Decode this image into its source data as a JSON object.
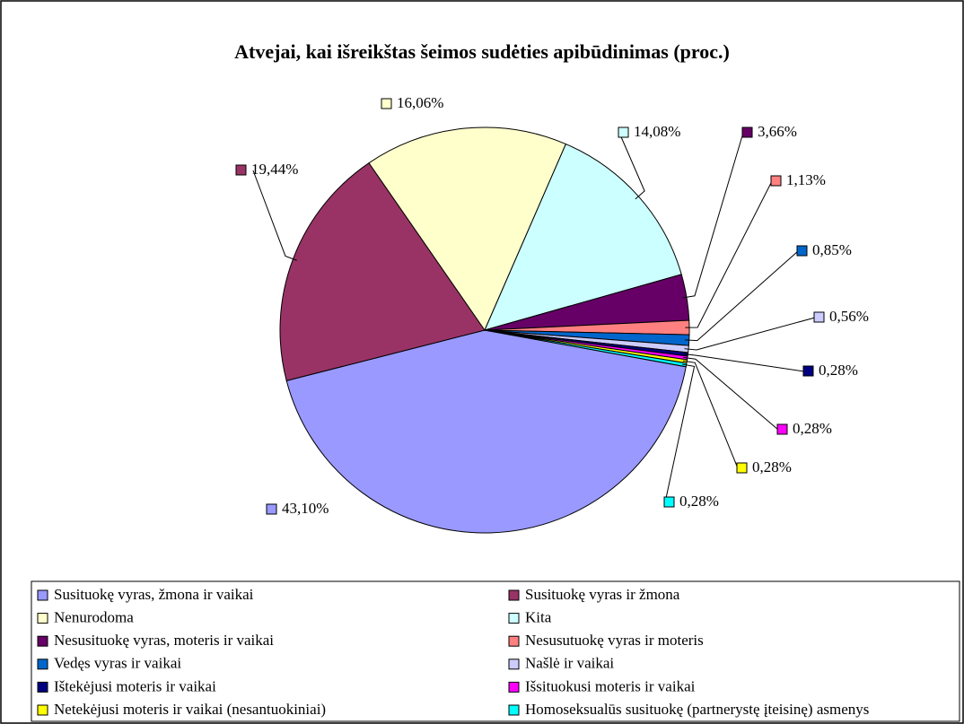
{
  "chart_data": {
    "type": "pie",
    "title": "Atvejai, kai išreikštas šeimos sudėties apibūdinimas (proc.)",
    "categories": [
      "Susituokę vyras, žmona ir vaikai",
      "Susituokę vyras ir žmona",
      "Nenurodoma",
      "Kita",
      "Nesusituokę vyras, moteris ir vaikai",
      "Nesusutuokę vyras ir moteris",
      "Vedęs vyras ir vaikai",
      "Našlė ir vaikai",
      "Ištekėjusi moteris ir vaikai",
      "Išsituokusi moteris ir vaikai",
      "Netekėjusi moteris ir vaikai (nesantuokiniai)",
      "Homoseksualūs susituokę (partnerystę įteisinę) asmenys"
    ],
    "values": [
      43.1,
      19.44,
      16.06,
      14.08,
      3.66,
      1.13,
      0.85,
      0.56,
      0.28,
      0.28,
      0.28,
      0.28
    ],
    "value_labels": [
      "43,10%",
      "19,44%",
      "16,06%",
      "14,08%",
      "3,66%",
      "1,13%",
      "0,85%",
      "0,56%",
      "0,28%",
      "0,28%",
      "0,28%",
      "0,28%"
    ],
    "colors": [
      "#9999ff",
      "#993366",
      "#ffffcc",
      "#ccffff",
      "#660066",
      "#ff8080",
      "#0066cc",
      "#ccccff",
      "#000080",
      "#ff00ff",
      "#ffff00",
      "#00ffff"
    ],
    "legend": "bottom"
  }
}
